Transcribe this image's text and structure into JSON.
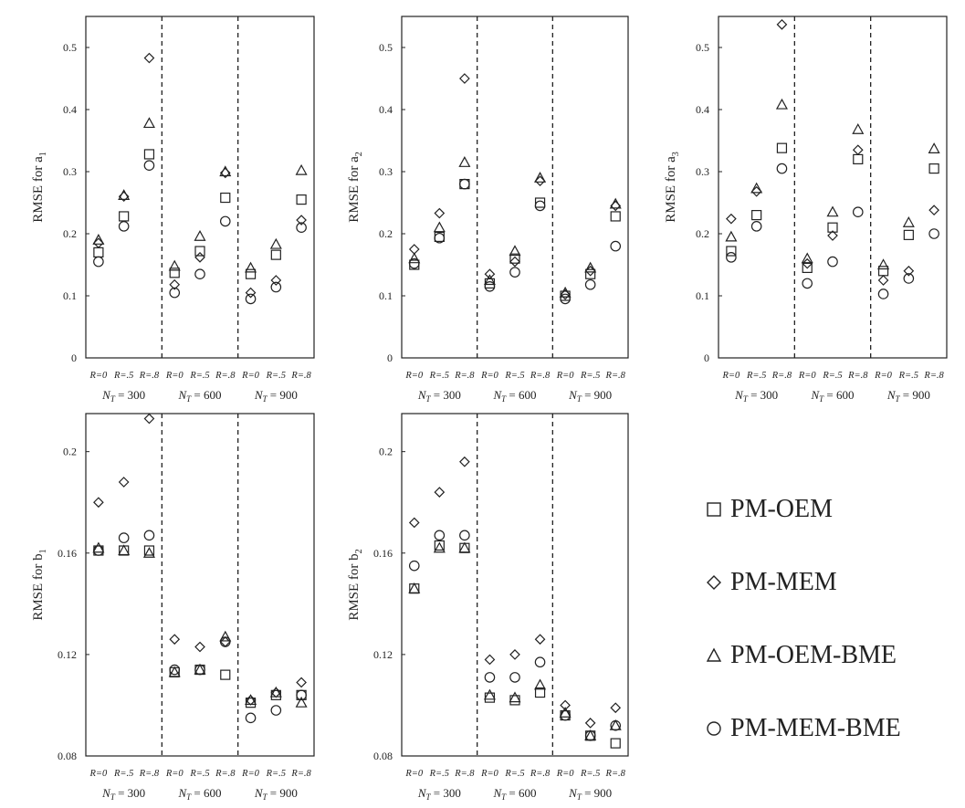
{
  "chart_data": [
    {
      "type": "scatter",
      "ylabel": "RMSE for a",
      "ylabel_sub": "1",
      "ylim": [
        0,
        0.55
      ],
      "yticks": [
        "0",
        "0.1",
        "0.2",
        "0.3",
        "0.4",
        "0.5"
      ],
      "categories": [
        "R=0",
        "R=.5",
        "R=.8",
        "R=0",
        "R=.5",
        "R=.8",
        "R=0",
        "R=.5",
        "R=.8"
      ],
      "groups": [
        "= 300",
        "= 600",
        "= 900"
      ],
      "series": [
        {
          "name": "PM-OEM",
          "values": [
            0.17,
            0.228,
            0.328,
            0.137,
            0.172,
            0.258,
            0.135,
            0.166,
            0.255
          ]
        },
        {
          "name": "PM-MEM",
          "values": [
            0.185,
            0.26,
            0.483,
            0.118,
            0.162,
            0.298,
            0.105,
            0.125,
            0.222
          ]
        },
        {
          "name": "PM-OEM-BME",
          "values": [
            0.19,
            0.262,
            0.378,
            0.148,
            0.196,
            0.3,
            0.145,
            0.183,
            0.302
          ]
        },
        {
          "name": "PM-MEM-BME",
          "values": [
            0.155,
            0.212,
            0.31,
            0.105,
            0.135,
            0.22,
            0.095,
            0.114,
            0.21
          ]
        }
      ]
    },
    {
      "type": "scatter",
      "ylabel": "RMSE for a",
      "ylabel_sub": "2",
      "ylim": [
        0,
        0.55
      ],
      "yticks": [
        "0",
        "0.1",
        "0.2",
        "0.3",
        "0.4",
        "0.5"
      ],
      "categories": [
        "R=0",
        "R=.5",
        "R=.8",
        "R=0",
        "R=.5",
        "R=.8",
        "R=0",
        "R=.5",
        "R=.8"
      ],
      "groups": [
        "= 300",
        "= 600",
        "= 900"
      ],
      "series": [
        {
          "name": "PM-OEM",
          "values": [
            0.15,
            0.195,
            0.28,
            0.12,
            0.16,
            0.25,
            0.1,
            0.135,
            0.228
          ]
        },
        {
          "name": "PM-MEM",
          "values": [
            0.175,
            0.233,
            0.45,
            0.135,
            0.155,
            0.285,
            0.102,
            0.14,
            0.245
          ]
        },
        {
          "name": "PM-OEM-BME",
          "values": [
            0.16,
            0.21,
            0.315,
            0.125,
            0.172,
            0.29,
            0.105,
            0.145,
            0.248
          ]
        },
        {
          "name": "PM-MEM-BME",
          "values": [
            0.152,
            0.193,
            0.28,
            0.115,
            0.138,
            0.245,
            0.095,
            0.118,
            0.18
          ]
        }
      ]
    },
    {
      "type": "scatter",
      "ylabel": "RMSE for a",
      "ylabel_sub": "3",
      "ylim": [
        0,
        0.55
      ],
      "yticks": [
        "0",
        "0.1",
        "0.2",
        "0.3",
        "0.4",
        "0.5"
      ],
      "categories": [
        "R=0",
        "R=.5",
        "R=.8",
        "R=0",
        "R=.5",
        "R=.8",
        "R=0",
        "R=.5",
        "R=.8"
      ],
      "groups": [
        "= 300",
        "= 600",
        "= 900"
      ],
      "series": [
        {
          "name": "PM-OEM",
          "values": [
            0.172,
            0.23,
            0.338,
            0.145,
            0.21,
            0.32,
            0.14,
            0.198,
            0.305
          ]
        },
        {
          "name": "PM-MEM",
          "values": [
            0.224,
            0.268,
            0.537,
            0.152,
            0.197,
            0.335,
            0.125,
            0.14,
            0.238
          ]
        },
        {
          "name": "PM-OEM-BME",
          "values": [
            0.195,
            0.273,
            0.408,
            0.16,
            0.235,
            0.368,
            0.15,
            0.218,
            0.337
          ]
        },
        {
          "name": "PM-MEM-BME",
          "values": [
            0.162,
            0.212,
            0.305,
            0.12,
            0.155,
            0.235,
            0.103,
            0.128,
            0.2
          ]
        }
      ]
    },
    {
      "type": "scatter",
      "ylabel": "RMSE for b",
      "ylabel_sub": "1",
      "ylim": [
        0.08,
        0.215
      ],
      "yticks": [
        "0.08",
        "0.12",
        "0.16",
        "0.2"
      ],
      "categories": [
        "R=0",
        "R=.5",
        "R=.8",
        "R=0",
        "R=.5",
        "R=.8",
        "R=0",
        "R=.5",
        "R=.8"
      ],
      "groups": [
        "= 300",
        "= 600",
        "= 900"
      ],
      "series": [
        {
          "name": "PM-OEM",
          "values": [
            0.161,
            0.161,
            0.161,
            0.113,
            0.114,
            0.112,
            0.101,
            0.104,
            0.104
          ]
        },
        {
          "name": "PM-MEM",
          "values": [
            0.18,
            0.188,
            0.213,
            0.126,
            0.123,
            0.125,
            0.102,
            0.105,
            0.109
          ]
        },
        {
          "name": "PM-OEM-BME",
          "values": [
            0.162,
            0.161,
            0.16,
            0.113,
            0.114,
            0.127,
            0.102,
            0.105,
            0.101
          ]
        },
        {
          "name": "PM-MEM-BME",
          "values": [
            0.161,
            0.166,
            0.167,
            0.114,
            0.114,
            0.125,
            0.095,
            0.098,
            0.104
          ]
        }
      ]
    },
    {
      "type": "scatter",
      "ylabel": "RMSE for b",
      "ylabel_sub": "2",
      "ylim": [
        0.08,
        0.215
      ],
      "yticks": [
        "0.08",
        "0.12",
        "0.16",
        "0.2"
      ],
      "categories": [
        "R=0",
        "R=.5",
        "R=.8",
        "R=0",
        "R=.5",
        "R=.8",
        "R=0",
        "R=.5",
        "R=.8"
      ],
      "groups": [
        "= 300",
        "= 600",
        "= 900"
      ],
      "series": [
        {
          "name": "PM-OEM",
          "values": [
            0.146,
            0.163,
            0.162,
            0.103,
            0.102,
            0.105,
            0.096,
            0.088,
            0.085
          ]
        },
        {
          "name": "PM-MEM",
          "values": [
            0.172,
            0.184,
            0.196,
            0.118,
            0.12,
            0.126,
            0.1,
            0.093,
            0.099
          ]
        },
        {
          "name": "PM-OEM-BME",
          "values": [
            0.146,
            0.162,
            0.162,
            0.104,
            0.103,
            0.108,
            0.097,
            0.088,
            0.092
          ]
        },
        {
          "name": "PM-MEM-BME",
          "values": [
            0.155,
            0.167,
            0.167,
            0.111,
            0.111,
            0.117,
            0.096,
            0.088,
            0.092
          ]
        }
      ]
    }
  ],
  "group_axis_label": {
    "letter": "N",
    "sub": "T"
  },
  "legend": {
    "items": [
      {
        "name": "PM-OEM",
        "marker": "square"
      },
      {
        "name": "PM-MEM",
        "marker": "diamond"
      },
      {
        "name": "PM-OEM-BME",
        "marker": "triangle"
      },
      {
        "name": "PM-MEM-BME",
        "marker": "circle"
      }
    ]
  }
}
